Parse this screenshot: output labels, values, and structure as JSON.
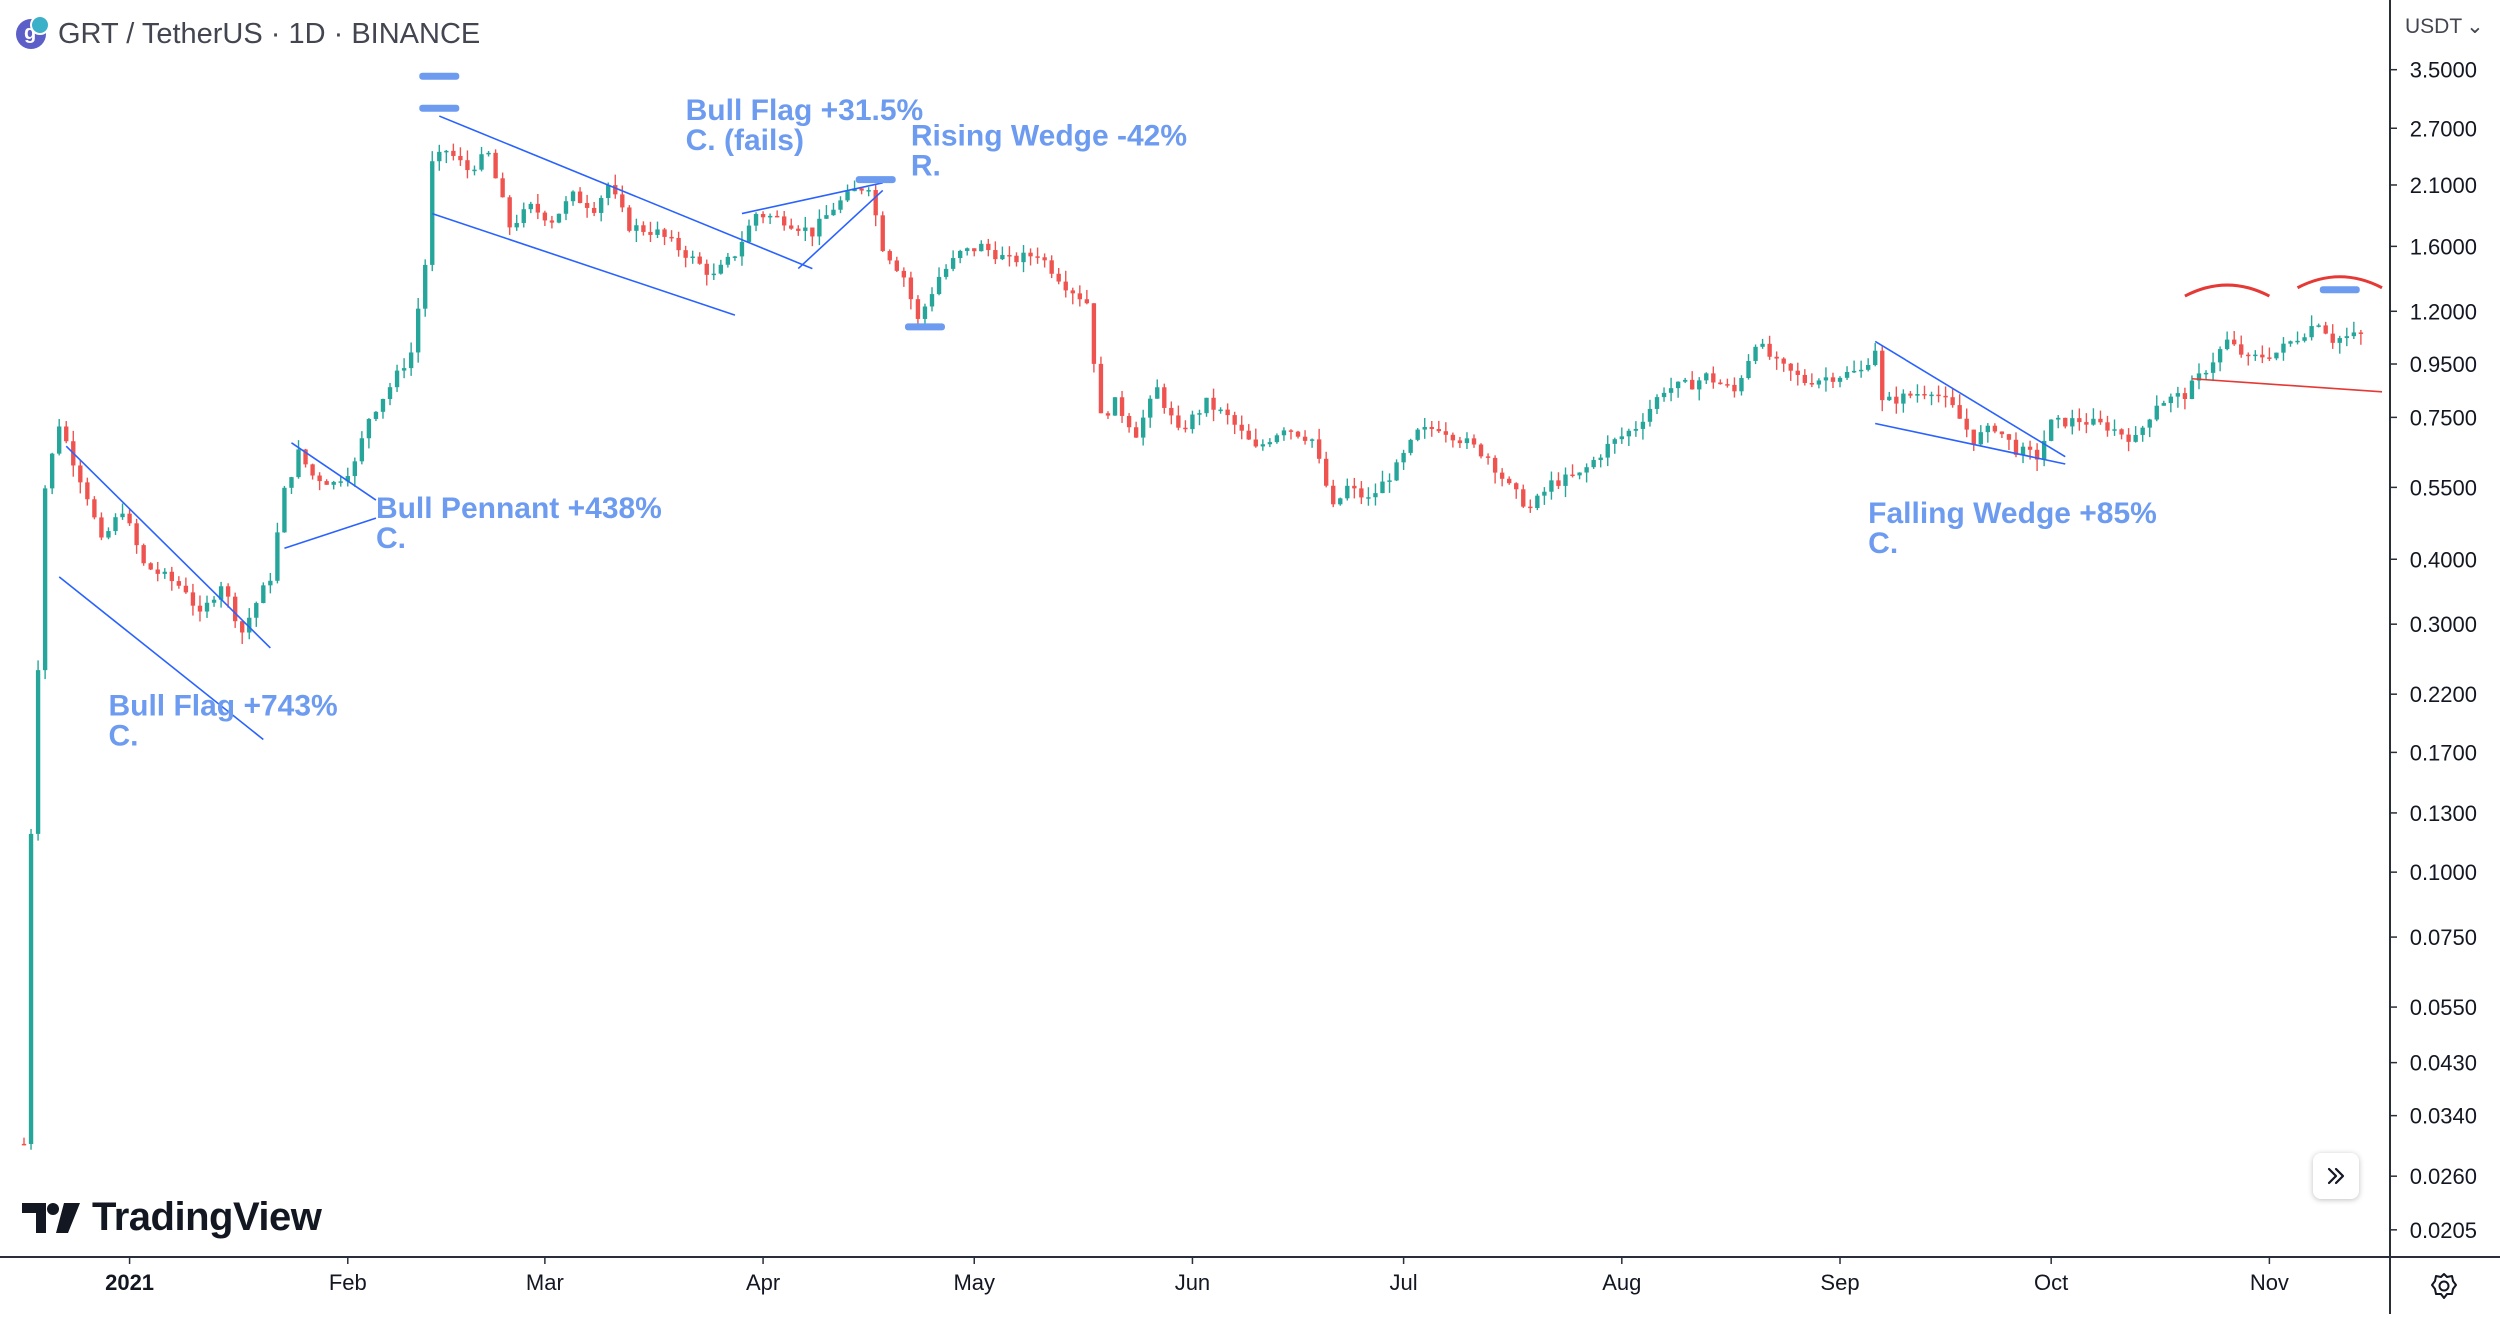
{
  "header": {
    "title": "GRT / TetherUS · 1D · BINANCE",
    "currency": "USDT"
  },
  "logo": {
    "text": "TradingView"
  },
  "colors": {
    "up": "#26a69a",
    "down": "#ef5350",
    "annotation": "#6c9bf0",
    "pattern_line": "#2962ff",
    "resistance": "#e53935"
  },
  "chart_data": {
    "type": "candlestick",
    "y_scale": "log",
    "ylim": [
      0.0185,
      4.6
    ],
    "x_range": [
      "2020-12-17",
      "2021-11-17"
    ],
    "y_ticks": [
      "3.5000",
      "2.7000",
      "2.1000",
      "1.6000",
      "1.2000",
      "0.9500",
      "0.7500",
      "0.5500",
      "0.4000",
      "0.3000",
      "0.2200",
      "0.1700",
      "0.1300",
      "0.1000",
      "0.0750",
      "0.0550",
      "0.0430",
      "0.0340",
      "0.0260",
      "0.0205"
    ],
    "x_ticks": [
      {
        "label": "2021",
        "date": "2021-01-01",
        "bold": true
      },
      {
        "label": "Feb",
        "date": "2021-02-01"
      },
      {
        "label": "Mar",
        "date": "2021-03-01"
      },
      {
        "label": "Apr",
        "date": "2021-04-01"
      },
      {
        "label": "May",
        "date": "2021-05-01"
      },
      {
        "label": "Jun",
        "date": "2021-06-01"
      },
      {
        "label": "Jul",
        "date": "2021-07-01"
      },
      {
        "label": "Aug",
        "date": "2021-08-01"
      },
      {
        "label": "Sep",
        "date": "2021-09-01"
      },
      {
        "label": "Oct",
        "date": "2021-10-01"
      },
      {
        "label": "Nov",
        "date": "2021-11-01"
      }
    ],
    "start_date": "2020-12-17",
    "price_path": [
      [
        "2020-12-17",
        0.03
      ],
      [
        "2020-12-18",
        0.12
      ],
      [
        "2020-12-19",
        0.25
      ],
      [
        "2020-12-20",
        0.55
      ],
      [
        "2020-12-22",
        0.73
      ],
      [
        "2020-12-24",
        0.62
      ],
      [
        "2020-12-26",
        0.53
      ],
      [
        "2020-12-28",
        0.43
      ],
      [
        "2020-12-31",
        0.5
      ],
      [
        "2021-01-03",
        0.39
      ],
      [
        "2021-01-06",
        0.37
      ],
      [
        "2021-01-09",
        0.35
      ],
      [
        "2021-01-11",
        0.31
      ],
      [
        "2021-01-14",
        0.36
      ],
      [
        "2021-01-17",
        0.29
      ],
      [
        "2021-01-19",
        0.33
      ],
      [
        "2021-01-21",
        0.37
      ],
      [
        "2021-01-23",
        0.54
      ],
      [
        "2021-01-25",
        0.64
      ],
      [
        "2021-01-27",
        0.58
      ],
      [
        "2021-01-30",
        0.56
      ],
      [
        "2021-02-02",
        0.61
      ],
      [
        "2021-02-04",
        0.75
      ],
      [
        "2021-02-07",
        0.86
      ],
      [
        "2021-02-10",
        1.0
      ],
      [
        "2021-02-12",
        1.48
      ],
      [
        "2021-02-13",
        2.3
      ],
      [
        "2021-02-15",
        2.45
      ],
      [
        "2021-02-18",
        2.25
      ],
      [
        "2021-02-21",
        2.4
      ],
      [
        "2021-02-24",
        1.75
      ],
      [
        "2021-02-27",
        1.9
      ],
      [
        "2021-03-02",
        1.8
      ],
      [
        "2021-03-05",
        2.0
      ],
      [
        "2021-03-08",
        1.9
      ],
      [
        "2021-03-10",
        2.1
      ],
      [
        "2021-03-13",
        1.75
      ],
      [
        "2021-03-17",
        1.7
      ],
      [
        "2021-03-21",
        1.55
      ],
      [
        "2021-03-25",
        1.4
      ],
      [
        "2021-03-28",
        1.55
      ],
      [
        "2021-03-31",
        1.85
      ],
      [
        "2021-04-04",
        1.8
      ],
      [
        "2021-04-08",
        1.7
      ],
      [
        "2021-04-11",
        1.9
      ],
      [
        "2021-04-14",
        2.05
      ],
      [
        "2021-04-16",
        2.1
      ],
      [
        "2021-04-18",
        1.6
      ],
      [
        "2021-04-21",
        1.4
      ],
      [
        "2021-04-23",
        1.15
      ],
      [
        "2021-04-26",
        1.4
      ],
      [
        "2021-04-29",
        1.55
      ],
      [
        "2021-05-02",
        1.6
      ],
      [
        "2021-05-06",
        1.5
      ],
      [
        "2021-05-10",
        1.55
      ],
      [
        "2021-05-14",
        1.35
      ],
      [
        "2021-05-17",
        1.25
      ],
      [
        "2021-05-19",
        0.75
      ],
      [
        "2021-05-21",
        0.8
      ],
      [
        "2021-05-24",
        0.7
      ],
      [
        "2021-05-27",
        0.85
      ],
      [
        "2021-05-30",
        0.7
      ],
      [
        "2021-06-03",
        0.8
      ],
      [
        "2021-06-06",
        0.75
      ],
      [
        "2021-06-10",
        0.65
      ],
      [
        "2021-06-14",
        0.72
      ],
      [
        "2021-06-18",
        0.68
      ],
      [
        "2021-06-21",
        0.5
      ],
      [
        "2021-06-23",
        0.55
      ],
      [
        "2021-06-26",
        0.52
      ],
      [
        "2021-06-30",
        0.6
      ],
      [
        "2021-07-03",
        0.7
      ],
      [
        "2021-07-06",
        0.72
      ],
      [
        "2021-07-10",
        0.67
      ],
      [
        "2021-07-13",
        0.63
      ],
      [
        "2021-07-16",
        0.55
      ],
      [
        "2021-07-19",
        0.5
      ],
      [
        "2021-07-22",
        0.56
      ],
      [
        "2021-07-26",
        0.58
      ],
      [
        "2021-07-30",
        0.66
      ],
      [
        "2021-08-03",
        0.72
      ],
      [
        "2021-08-07",
        0.85
      ],
      [
        "2021-08-11",
        0.87
      ],
      [
        "2021-08-13",
        0.9
      ],
      [
        "2021-08-17",
        0.84
      ],
      [
        "2021-08-20",
        1.05
      ],
      [
        "2021-08-23",
        0.95
      ],
      [
        "2021-08-27",
        0.88
      ],
      [
        "2021-08-31",
        0.9
      ],
      [
        "2021-09-04",
        0.92
      ],
      [
        "2021-09-06",
        1.02
      ],
      [
        "2021-09-07",
        0.8
      ],
      [
        "2021-09-10",
        0.82
      ],
      [
        "2021-09-14",
        0.85
      ],
      [
        "2021-09-17",
        0.78
      ],
      [
        "2021-09-20",
        0.68
      ],
      [
        "2021-09-23",
        0.72
      ],
      [
        "2021-09-26",
        0.65
      ],
      [
        "2021-09-29",
        0.63
      ],
      [
        "2021-10-01",
        0.73
      ],
      [
        "2021-10-05",
        0.74
      ],
      [
        "2021-10-09",
        0.72
      ],
      [
        "2021-10-13",
        0.68
      ],
      [
        "2021-10-16",
        0.8
      ],
      [
        "2021-10-20",
        0.83
      ],
      [
        "2021-10-23",
        0.93
      ],
      [
        "2021-10-26",
        1.05
      ],
      [
        "2021-10-29",
        0.97
      ],
      [
        "2021-11-02",
        1.0
      ],
      [
        "2021-11-05",
        1.07
      ],
      [
        "2021-11-08",
        1.15
      ],
      [
        "2021-11-10",
        1.06
      ],
      [
        "2021-11-14",
        1.08
      ]
    ],
    "patterns": [
      {
        "name": "Bull Flag",
        "lines": [
          [
            [
              "2020-12-23",
              0.66
            ],
            [
              "2021-01-21",
              0.27
            ]
          ],
          [
            [
              "2020-12-22",
              0.37
            ],
            [
              "2021-01-20",
              0.18
            ]
          ]
        ]
      },
      {
        "name": "Bull Pennant",
        "lines": [
          [
            [
              "2021-01-24",
              0.67
            ],
            [
              "2021-02-05",
              0.52
            ]
          ],
          [
            [
              "2021-01-23",
              0.42
            ],
            [
              "2021-02-05",
              0.48
            ]
          ]
        ]
      },
      {
        "name": "Bull Flag",
        "lines": [
          [
            [
              "2021-02-14",
              2.85
            ],
            [
              "2021-04-08",
              1.45
            ]
          ],
          [
            [
              "2021-02-13",
              1.85
            ],
            [
              "2021-03-28",
              1.18
            ]
          ]
        ]
      },
      {
        "name": "Rising Wedge",
        "lines": [
          [
            [
              "2021-03-29",
              1.85
            ],
            [
              "2021-04-18",
              2.12
            ]
          ],
          [
            [
              "2021-04-06",
              1.45
            ],
            [
              "2021-04-18",
              2.05
            ]
          ]
        ]
      },
      {
        "name": "Falling Wedge",
        "lines": [
          [
            [
              "2021-09-06",
              1.05
            ],
            [
              "2021-10-03",
              0.63
            ]
          ],
          [
            [
              "2021-09-06",
              0.73
            ],
            [
              "2021-10-03",
              0.61
            ]
          ]
        ]
      },
      {
        "name": "Support",
        "lines": [
          [
            [
              "2021-10-21",
              0.89
            ],
            [
              "2021-11-17",
              0.84
            ]
          ]
        ]
      }
    ],
    "annotations": [
      {
        "lines": [
          "Bull Flag +743%",
          "C."
        ],
        "date": "2020-12-29",
        "price": 0.2
      },
      {
        "lines": [
          "Bull Pennant +438%",
          "C."
        ],
        "date": "2021-02-05",
        "price": 0.48
      },
      {
        "lines": [
          "Bull Flag +31.5%",
          "C. (fails)"
        ],
        "date": "2021-03-21",
        "price": 2.8
      },
      {
        "lines": [
          "Rising Wedge -42%",
          "R."
        ],
        "date": "2021-04-22",
        "price": 2.5
      },
      {
        "lines": [
          "Falling Wedge +85%",
          "C."
        ],
        "date": "2021-09-05",
        "price": 0.47
      }
    ],
    "level_markers": [
      {
        "date": "2021-02-14",
        "price": 3.4
      },
      {
        "date": "2021-02-14",
        "price": 2.95
      },
      {
        "date": "2021-04-17",
        "price": 2.15
      },
      {
        "date": "2021-04-24",
        "price": 1.12
      },
      {
        "date": "2021-11-11",
        "price": 1.32
      }
    ],
    "resistance_arcs": [
      {
        "from": "2021-10-20",
        "to": "2021-11-01",
        "price": 1.33
      },
      {
        "from": "2021-11-05",
        "to": "2021-11-17",
        "price": 1.38
      }
    ]
  }
}
